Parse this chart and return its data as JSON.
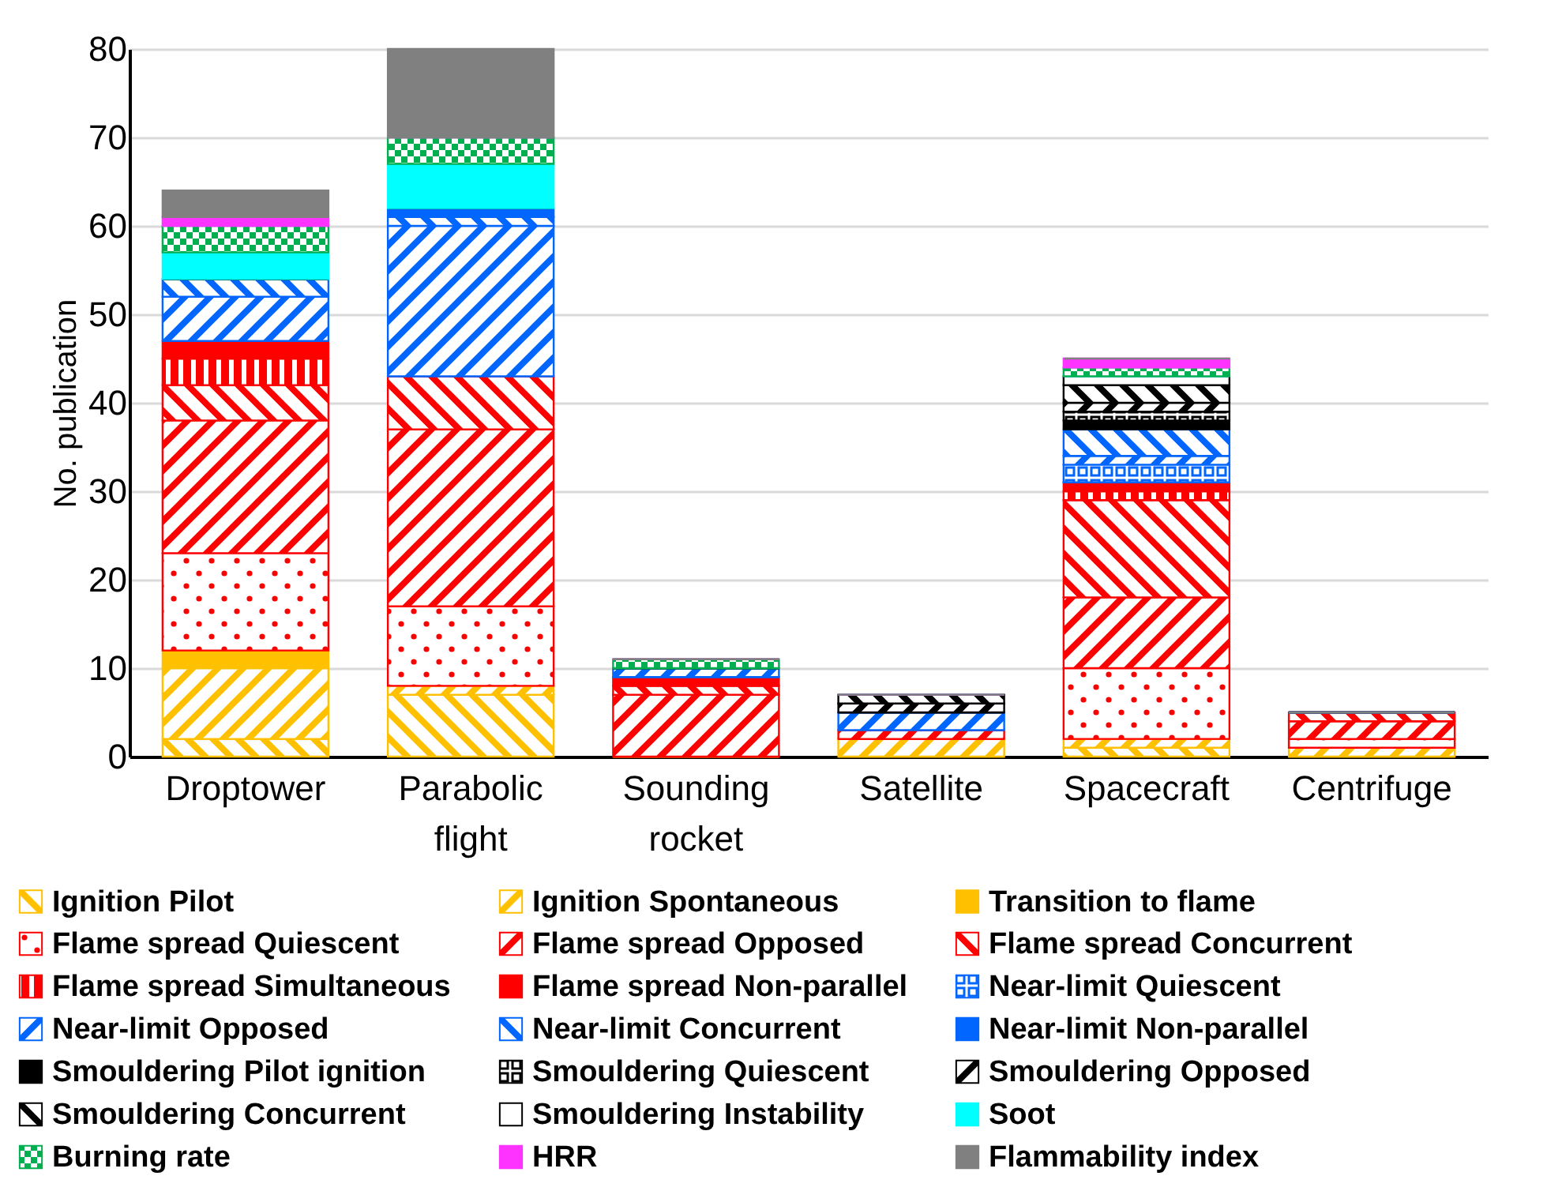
{
  "chart_data": {
    "type": "bar",
    "stacked": true,
    "ylabel": "No. publication",
    "categories": [
      "Droptower",
      "Parabolic flight",
      "Sounding rocket",
      "Satellite",
      "Spacecraft",
      "Centrifuge"
    ],
    "ylim": [
      0,
      80
    ],
    "yticks": [
      0,
      10,
      20,
      30,
      40,
      50,
      60,
      70,
      80
    ],
    "grid": "y",
    "legend": "bottom",
    "series": [
      {
        "name": "Ignition Pilot",
        "color": "#ffc000",
        "values": [
          2,
          7,
          0,
          0,
          1,
          0
        ]
      },
      {
        "name": "Ignition Spontaneous",
        "color": "#ffc000",
        "values": [
          8,
          1,
          0,
          2,
          1,
          1
        ]
      },
      {
        "name": "Transition to flame",
        "color": "#ffc000",
        "values": [
          2,
          0,
          0,
          0,
          0,
          0
        ]
      },
      {
        "name": "Flame spread Quiescent",
        "color": "#ff0000",
        "values": [
          11,
          9,
          0,
          0,
          8,
          1
        ]
      },
      {
        "name": "Flame spread Opposed",
        "color": "#ff0000",
        "values": [
          15,
          20,
          7,
          1,
          8,
          2
        ]
      },
      {
        "name": "Flame spread Concurrent",
        "color": "#ff0000",
        "values": [
          4,
          6,
          1,
          0,
          11,
          1
        ]
      },
      {
        "name": "Flame spread Simultaneous",
        "color": "#ff0000",
        "values": [
          3,
          0,
          0,
          0,
          1,
          0
        ]
      },
      {
        "name": "Flame spread Non-parallel",
        "color": "#ff0000",
        "values": [
          2,
          0,
          1,
          0,
          1,
          0
        ]
      },
      {
        "name": "Near-limit Quiescent",
        "color": "#0066ff",
        "values": [
          0,
          0,
          0,
          0,
          2,
          0
        ]
      },
      {
        "name": "Near-limit Opposed",
        "color": "#0066ff",
        "values": [
          5,
          17,
          1,
          2,
          1,
          0
        ]
      },
      {
        "name": "Near-limit Concurrent",
        "color": "#0066ff",
        "values": [
          2,
          1,
          0,
          0,
          3,
          0
        ]
      },
      {
        "name": "Near-limit Non-parallel",
        "color": "#0066ff",
        "values": [
          0,
          1,
          0,
          0,
          0,
          0
        ]
      },
      {
        "name": "Smouldering Pilot ignition",
        "color": "#000000",
        "values": [
          0,
          0,
          0,
          0,
          1,
          0
        ]
      },
      {
        "name": "Smouldering Quiescent",
        "color": "#000000",
        "values": [
          0,
          0,
          0,
          0,
          1,
          0
        ]
      },
      {
        "name": "Smouldering Opposed",
        "color": "#000000",
        "values": [
          0,
          0,
          0,
          1,
          1,
          0
        ]
      },
      {
        "name": "Smouldering Concurrent",
        "color": "#000000",
        "values": [
          0,
          0,
          0,
          1,
          2,
          0
        ]
      },
      {
        "name": "Smouldering Instability",
        "color": "#000000",
        "values": [
          0,
          0,
          0,
          0,
          1,
          0
        ]
      },
      {
        "name": "Soot",
        "color": "#00ffff",
        "values": [
          3,
          5,
          0,
          0,
          0,
          0
        ]
      },
      {
        "name": "Burning rate",
        "color": "#00b050",
        "values": [
          3,
          3,
          1,
          0,
          1,
          0
        ]
      },
      {
        "name": "HRR",
        "color": "#ff33ff",
        "values": [
          1,
          0,
          0,
          0,
          1,
          0
        ]
      },
      {
        "name": "Flammability index",
        "color": "#808080",
        "values": [
          3,
          10,
          0,
          0,
          0,
          0
        ]
      }
    ]
  }
}
